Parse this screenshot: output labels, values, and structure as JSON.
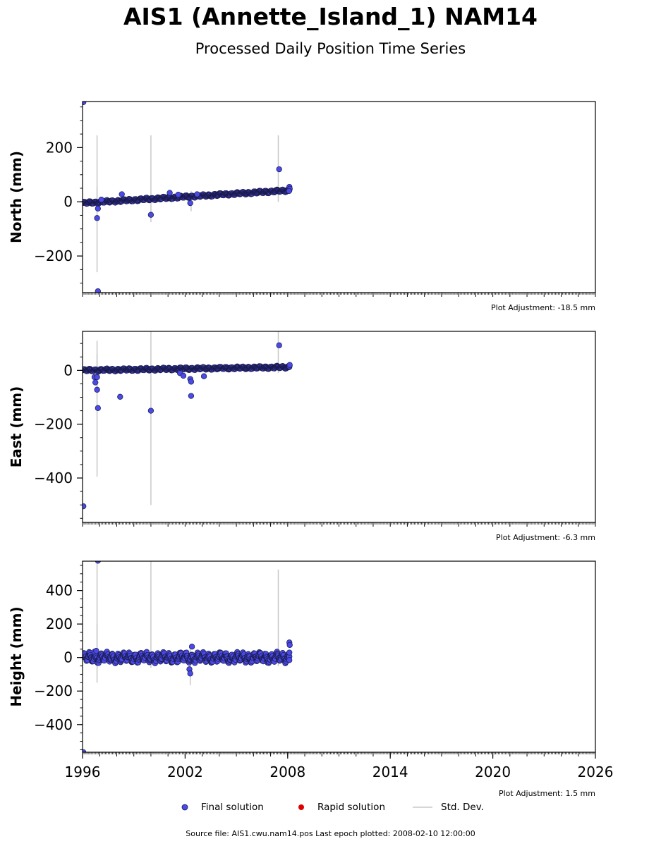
{
  "title": "AIS1 (Annette_Island_1) NAM14",
  "subtitle": "Processed Daily Position Time Series",
  "legend": {
    "final_label": "Final solution",
    "rapid_label": "Rapid solution",
    "std_label": "Std. Dev."
  },
  "footer": "Source file: AIS1.cwu.nam14.pos  Last epoch plotted: 2008-02-10 12:00:00",
  "colors": {
    "final": "#4a4ae8",
    "final_edge": "#1a1a4a",
    "rapid": "#e00000",
    "std": "#c8c8c8"
  },
  "chart_data": [
    {
      "type": "scatter",
      "ylabel": "North (mm)",
      "adjustment": "Plot Adjustment: -18.5 mm",
      "xlim": [
        1996,
        2026
      ],
      "ylim": [
        -335,
        370
      ],
      "yticks": [
        -200,
        0,
        200
      ],
      "yticklabels": [
        "−200",
        "0",
        "200"
      ],
      "trend": {
        "x0": 1996.0,
        "y0": -5,
        "x1": 2008.1,
        "y1": 42,
        "amp": 3
      },
      "points": [
        [
          1996.05,
          368
        ],
        [
          1996.9,
          -330
        ],
        [
          1996.85,
          -60
        ],
        [
          1996.9,
          -25
        ],
        [
          1997.1,
          8
        ],
        [
          1998.3,
          28
        ],
        [
          2000.0,
          -48
        ],
        [
          2001.1,
          33
        ],
        [
          2001.6,
          26
        ],
        [
          2002.3,
          -5
        ],
        [
          2002.7,
          28
        ],
        [
          2007.5,
          120
        ],
        [
          2008.1,
          55
        ],
        [
          2008.12,
          48
        ],
        [
          2008.08,
          40
        ]
      ],
      "errorbars": [
        [
          1996.85,
          -260,
          245
        ],
        [
          1996.85,
          -20,
          55
        ],
        [
          2000.0,
          -75,
          245
        ],
        [
          2007.45,
          0,
          245
        ],
        [
          2002.35,
          -35,
          40
        ]
      ]
    },
    {
      "type": "scatter",
      "ylabel": "East (mm)",
      "adjustment": "Plot Adjustment: -6.3 mm",
      "xlim": [
        1996,
        2026
      ],
      "ylim": [
        -565,
        145
      ],
      "yticks": [
        -400,
        -200,
        0
      ],
      "yticklabels": [
        "−400",
        "−200",
        "0"
      ],
      "trend": {
        "x0": 1996.0,
        "y0": 0,
        "x1": 2008.1,
        "y1": 12,
        "amp": 3
      },
      "points": [
        [
          1996.05,
          -505
        ],
        [
          1996.7,
          -25
        ],
        [
          1996.75,
          -45
        ],
        [
          1996.85,
          -25
        ],
        [
          1996.85,
          -72
        ],
        [
          1996.9,
          -140
        ],
        [
          1998.2,
          -98
        ],
        [
          2000.0,
          -150
        ],
        [
          2001.7,
          -10
        ],
        [
          2001.9,
          -20
        ],
        [
          2002.3,
          -32
        ],
        [
          2002.35,
          -42
        ],
        [
          2002.35,
          -95
        ],
        [
          2003.1,
          -22
        ],
        [
          2007.5,
          93
        ],
        [
          2008.1,
          15
        ],
        [
          2008.12,
          20
        ]
      ],
      "errorbars": [
        [
          1996.85,
          -395,
          110
        ],
        [
          1996.85,
          -60,
          60
        ],
        [
          2000.0,
          -500,
          145
        ],
        [
          2007.45,
          -10,
          145
        ]
      ]
    },
    {
      "type": "scatter",
      "ylabel": "Height (mm)",
      "adjustment": "Plot Adjustment: 1.5 mm",
      "xlim": [
        1996,
        2026
      ],
      "ylim": [
        -565,
        575
      ],
      "yticks": [
        -400,
        -200,
        0,
        200,
        400
      ],
      "yticklabels": [
        "−400",
        "−200",
        "0",
        "200",
        "400"
      ],
      "xticks": [
        1996,
        2002,
        2008,
        2014,
        2020,
        2026
      ],
      "xticklabels": [
        "1996",
        "2002",
        "2008",
        "2014",
        "2020",
        "2026"
      ],
      "trend": {
        "x0": 1996.0,
        "y0": 0,
        "x1": 2008.1,
        "y1": 0,
        "amp": 18
      },
      "points": [
        [
          1996.05,
          -565
        ],
        [
          1996.9,
          578
        ],
        [
          1996.7,
          35
        ],
        [
          1996.8,
          40
        ],
        [
          2002.25,
          -70
        ],
        [
          2002.3,
          -95
        ],
        [
          2002.4,
          65
        ],
        [
          2008.1,
          90
        ],
        [
          2008.12,
          75
        ],
        [
          2008.1,
          30
        ],
        [
          2008.1,
          -15
        ]
      ],
      "errorbars": [
        [
          1996.85,
          -150,
          575
        ],
        [
          1996.85,
          -60,
          200
        ],
        [
          2000.0,
          -60,
          575
        ],
        [
          2007.45,
          -50,
          525
        ],
        [
          2002.3,
          -165,
          80
        ]
      ]
    }
  ]
}
